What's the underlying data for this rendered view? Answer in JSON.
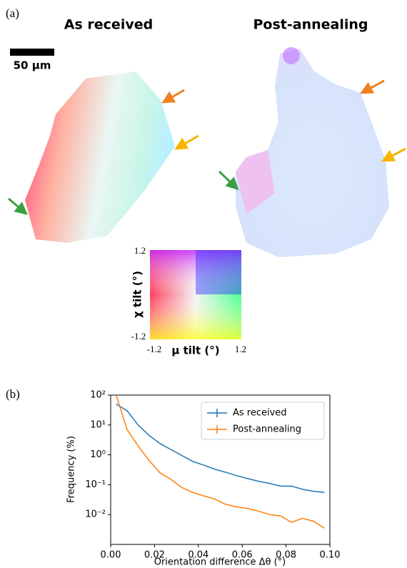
{
  "panel_a": {
    "label": "(a)",
    "title_left": "As received",
    "title_right": "Post-annealing",
    "scale_bar": "50 μm",
    "key": {
      "y_label": "χ tilt (°)",
      "x_label": "μ tilt (°)",
      "y_max": "1.2",
      "y_min": "-1.2",
      "x_min": "-1.2",
      "x_max": "1.2"
    }
  },
  "chart_data": {
    "type": "line",
    "panel_label": "(b)",
    "x_label": "Orientation difference Δθ (°)",
    "y_label": "Frequency (%)",
    "x": [
      0.0025,
      0.0075,
      0.0125,
      0.0175,
      0.0225,
      0.0275,
      0.0325,
      0.0375,
      0.0425,
      0.0475,
      0.0525,
      0.0575,
      0.0625,
      0.0675,
      0.0725,
      0.0775,
      0.0825,
      0.0875,
      0.0925,
      0.0975
    ],
    "series": [
      {
        "name": "As received",
        "color": "#1f77b4",
        "values": [
          50,
          30,
          10,
          4.5,
          2.4,
          1.5,
          0.95,
          0.6,
          0.45,
          0.33,
          0.26,
          0.2,
          0.16,
          0.13,
          0.11,
          0.09,
          0.09,
          0.07,
          0.06,
          0.055
        ]
      },
      {
        "name": "Post-annealing",
        "color": "#ff7f0e",
        "values": [
          100,
          7,
          2,
          0.65,
          0.25,
          0.15,
          0.08,
          0.055,
          0.042,
          0.033,
          0.022,
          0.018,
          0.016,
          0.013,
          0.01,
          0.009,
          0.0055,
          0.0075,
          0.006,
          0.0035
        ]
      }
    ],
    "xlim": [
      0,
      0.1
    ],
    "xticks": [
      {
        "value": 0,
        "label": "0.00"
      },
      {
        "value": 0.02,
        "label": "0.02"
      },
      {
        "value": 0.04,
        "label": "0.04"
      },
      {
        "value": 0.06,
        "label": "0.06"
      },
      {
        "value": 0.08,
        "label": "0.08"
      },
      {
        "value": 0.1,
        "label": "0.10"
      }
    ],
    "ylim": [
      0.001,
      100
    ],
    "yscale": "log",
    "yticks": [
      {
        "value": 0.01,
        "label": "10⁻²"
      },
      {
        "value": 0.1,
        "label": "10⁻¹"
      },
      {
        "value": 1,
        "label": "10⁰"
      },
      {
        "value": 10,
        "label": "10¹"
      },
      {
        "value": 100,
        "label": "10²"
      }
    ],
    "legend": "upper right"
  }
}
